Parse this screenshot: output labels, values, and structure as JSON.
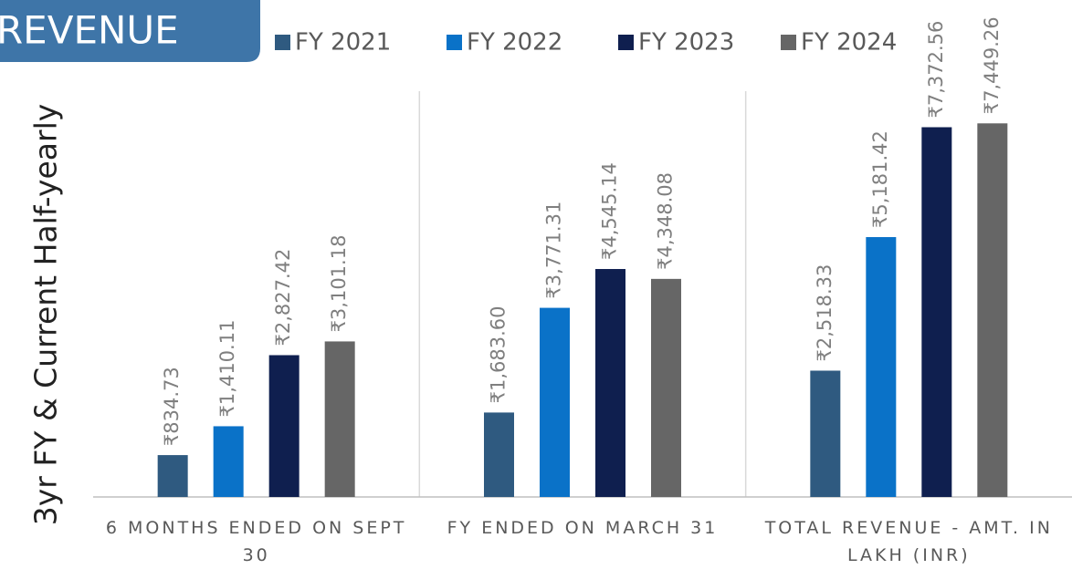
{
  "chart_data": {
    "type": "bar",
    "title": "REVENUE",
    "y_axis_label": "3yr FY & Current Half-yearly",
    "categories": [
      "6 MONTHS ENDED ON SEPT 30",
      "FY ENDED ON MARCH 31",
      "TOTAL REVENUE - AMT. IN LAKH (INR)"
    ],
    "series": [
      {
        "name": "FY 2021",
        "color": "#2f5a80",
        "values": [
          834.73,
          1683.6,
          2518.33
        ],
        "value_labels": [
          "₹834.73",
          "₹1,683.60",
          "₹2,518.33"
        ]
      },
      {
        "name": "FY 2022",
        "color": "#0a72c8",
        "values": [
          1410.11,
          3771.31,
          5181.42
        ],
        "value_labels": [
          "₹1,410.11",
          "₹3,771.31",
          "₹5,181.42"
        ]
      },
      {
        "name": "FY 2023",
        "color": "#0f1f4f",
        "values": [
          2827.42,
          4545.14,
          7372.56
        ],
        "value_labels": [
          "₹2,827.42",
          "₹4,545.14",
          "₹7,372.56"
        ]
      },
      {
        "name": "FY 2024",
        "color": "#666666",
        "values": [
          3101.18,
          4348.08,
          7449.26
        ],
        "value_labels": [
          "₹3,101.18",
          "₹4,348.08",
          "₹7,449.26"
        ]
      }
    ],
    "ylim": [
      0,
      8000
    ],
    "legend": "top"
  }
}
